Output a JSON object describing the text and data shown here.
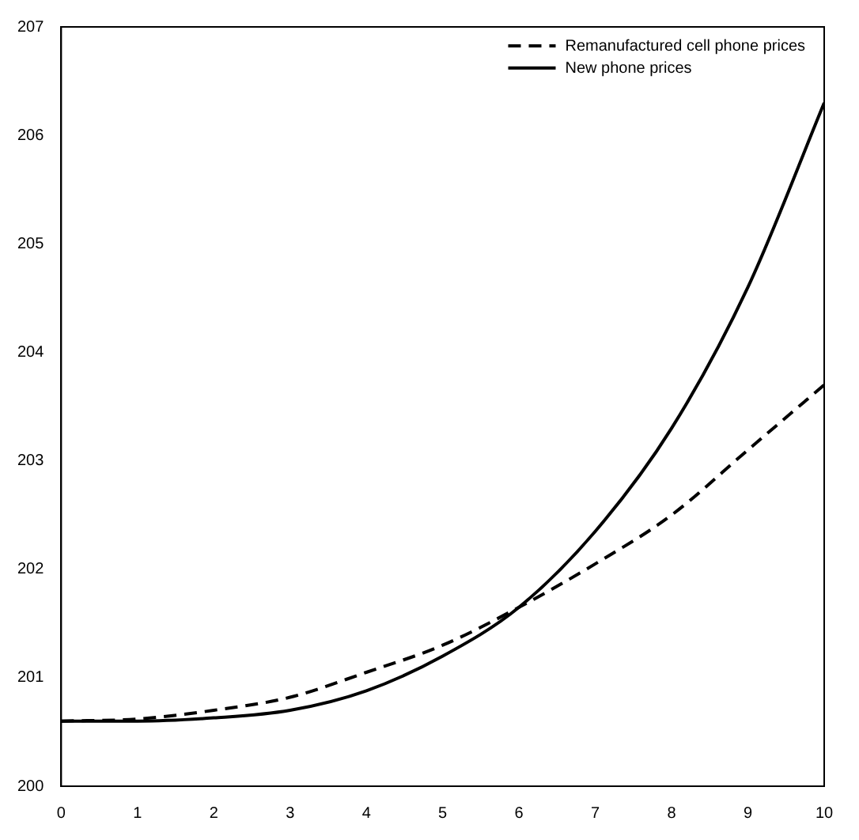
{
  "chart_data": {
    "type": "line",
    "x": [
      0,
      1,
      2,
      3,
      4,
      5,
      6,
      7,
      8,
      9,
      10
    ],
    "series": [
      {
        "name": "Remanufactured cell phone prices",
        "color": "#000000",
        "line_style": "dashed",
        "values": [
          200.6,
          200.62,
          200.7,
          200.82,
          201.05,
          201.3,
          201.65,
          202.05,
          202.5,
          203.1,
          203.7
        ]
      },
      {
        "name": "New phone prices",
        "color": "#000000",
        "line_style": "solid",
        "values": [
          200.6,
          200.6,
          200.63,
          200.7,
          200.88,
          201.2,
          201.65,
          202.35,
          203.3,
          204.6,
          206.3
        ]
      }
    ],
    "xlim": [
      0,
      10
    ],
    "xticks": [
      0,
      1,
      2,
      3,
      4,
      5,
      6,
      7,
      8,
      9,
      10
    ],
    "ylim": [
      200,
      207
    ],
    "yticks": [
      200,
      201,
      202,
      203,
      204,
      205,
      206,
      207
    ],
    "grid": false,
    "legend": "top right",
    "marker": "none"
  }
}
